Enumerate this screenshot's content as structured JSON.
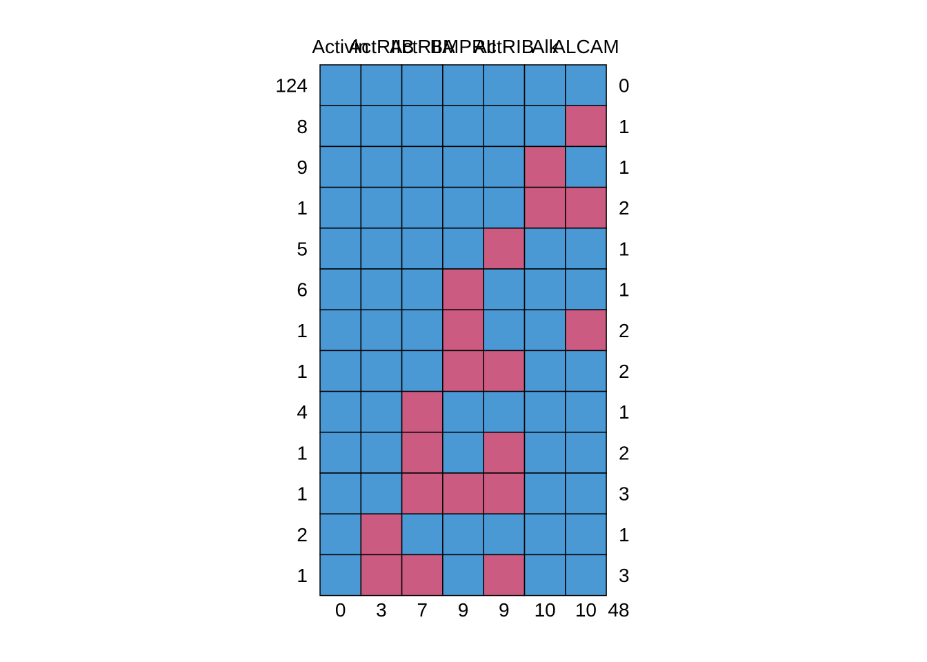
{
  "chart_data": {
    "type": "heatmap",
    "title": "",
    "xlabel": "",
    "ylabel": "",
    "columns": [
      "Activin",
      "ActRIIB",
      "ActRIIA",
      "BMPRII",
      "ActRIB",
      "Alk",
      "ALCAM"
    ],
    "column_totals": [
      "0",
      "3",
      "7",
      "9",
      "9",
      "10",
      "10"
    ],
    "grand_total": "48",
    "row_counts": [
      "124",
      "8",
      "9",
      "1",
      "5",
      "6",
      "1",
      "1",
      "4",
      "1",
      "1",
      "2",
      "1"
    ],
    "row_missing": [
      "0",
      "1",
      "1",
      "2",
      "1",
      "1",
      "2",
      "2",
      "1",
      "2",
      "3",
      "1",
      "3"
    ],
    "cells": [
      [
        0,
        0,
        0,
        0,
        0,
        0,
        0
      ],
      [
        0,
        0,
        0,
        0,
        0,
        0,
        1
      ],
      [
        0,
        0,
        0,
        0,
        0,
        1,
        0
      ],
      [
        0,
        0,
        0,
        0,
        0,
        1,
        1
      ],
      [
        0,
        0,
        0,
        0,
        1,
        0,
        0
      ],
      [
        0,
        0,
        0,
        1,
        0,
        0,
        0
      ],
      [
        0,
        0,
        0,
        1,
        0,
        0,
        1
      ],
      [
        0,
        0,
        0,
        1,
        1,
        0,
        0
      ],
      [
        0,
        0,
        1,
        0,
        0,
        0,
        0
      ],
      [
        0,
        0,
        1,
        0,
        1,
        0,
        0
      ],
      [
        0,
        0,
        1,
        1,
        1,
        0,
        0
      ],
      [
        0,
        1,
        0,
        0,
        0,
        0,
        0
      ],
      [
        0,
        1,
        1,
        0,
        1,
        0,
        0
      ]
    ],
    "colors": {
      "observed": "#4A98D4",
      "missing": "#CB5B81",
      "border": "#000000"
    }
  }
}
